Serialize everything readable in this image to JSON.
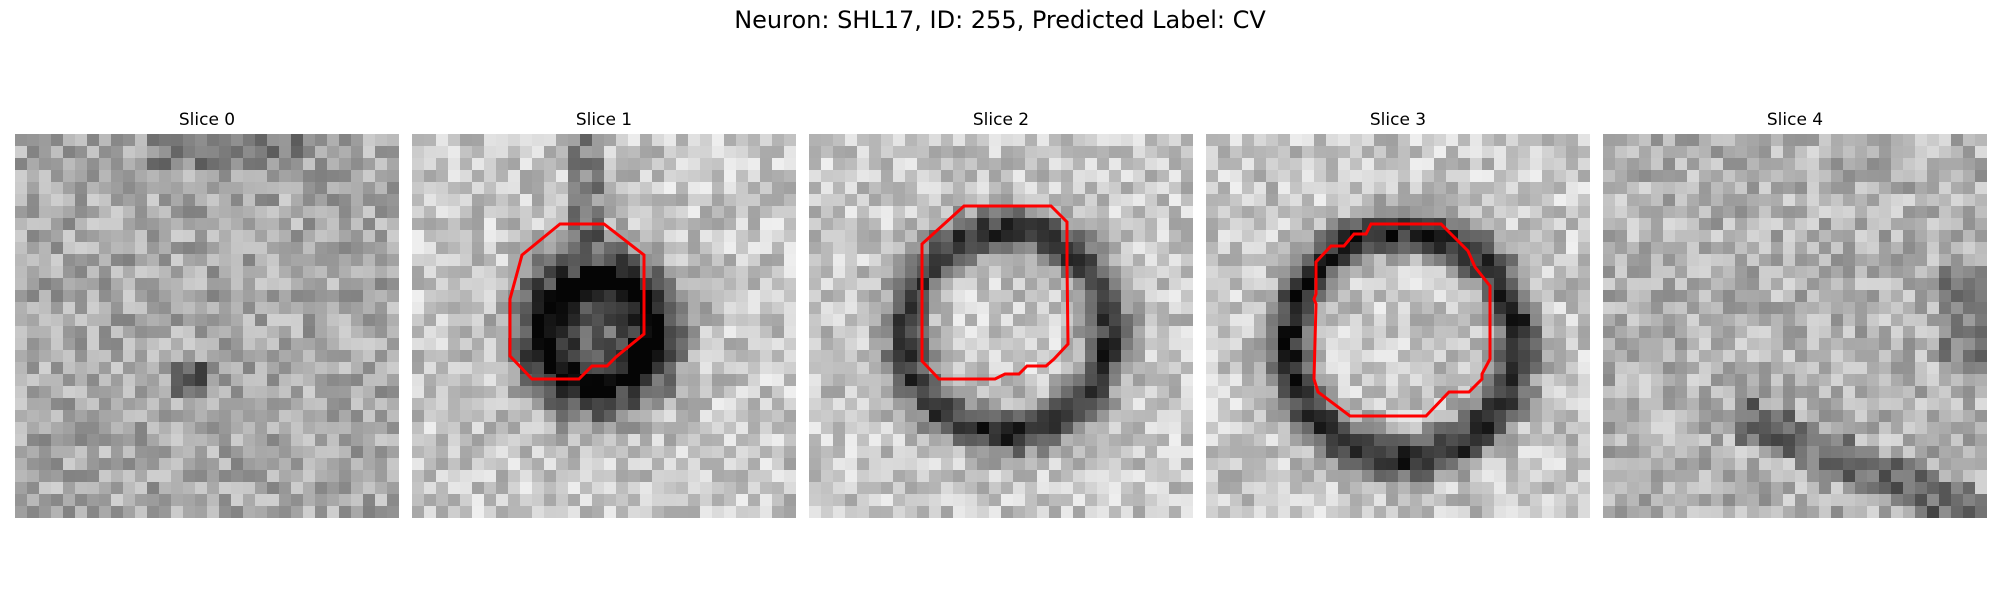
{
  "figure": {
    "title": "Neuron: SHL17, ID: 255, Predicted Label: CV"
  },
  "colors": {
    "contour": "#ff0000",
    "background": "#ffffff"
  },
  "panels": [
    {
      "title": "Slice 0",
      "has_contour": false
    },
    {
      "title": "Slice 1",
      "has_contour": true
    },
    {
      "title": "Slice 2",
      "has_contour": true
    },
    {
      "title": "Slice 3",
      "has_contour": true
    },
    {
      "title": "Slice 4",
      "has_contour": false
    }
  ]
}
